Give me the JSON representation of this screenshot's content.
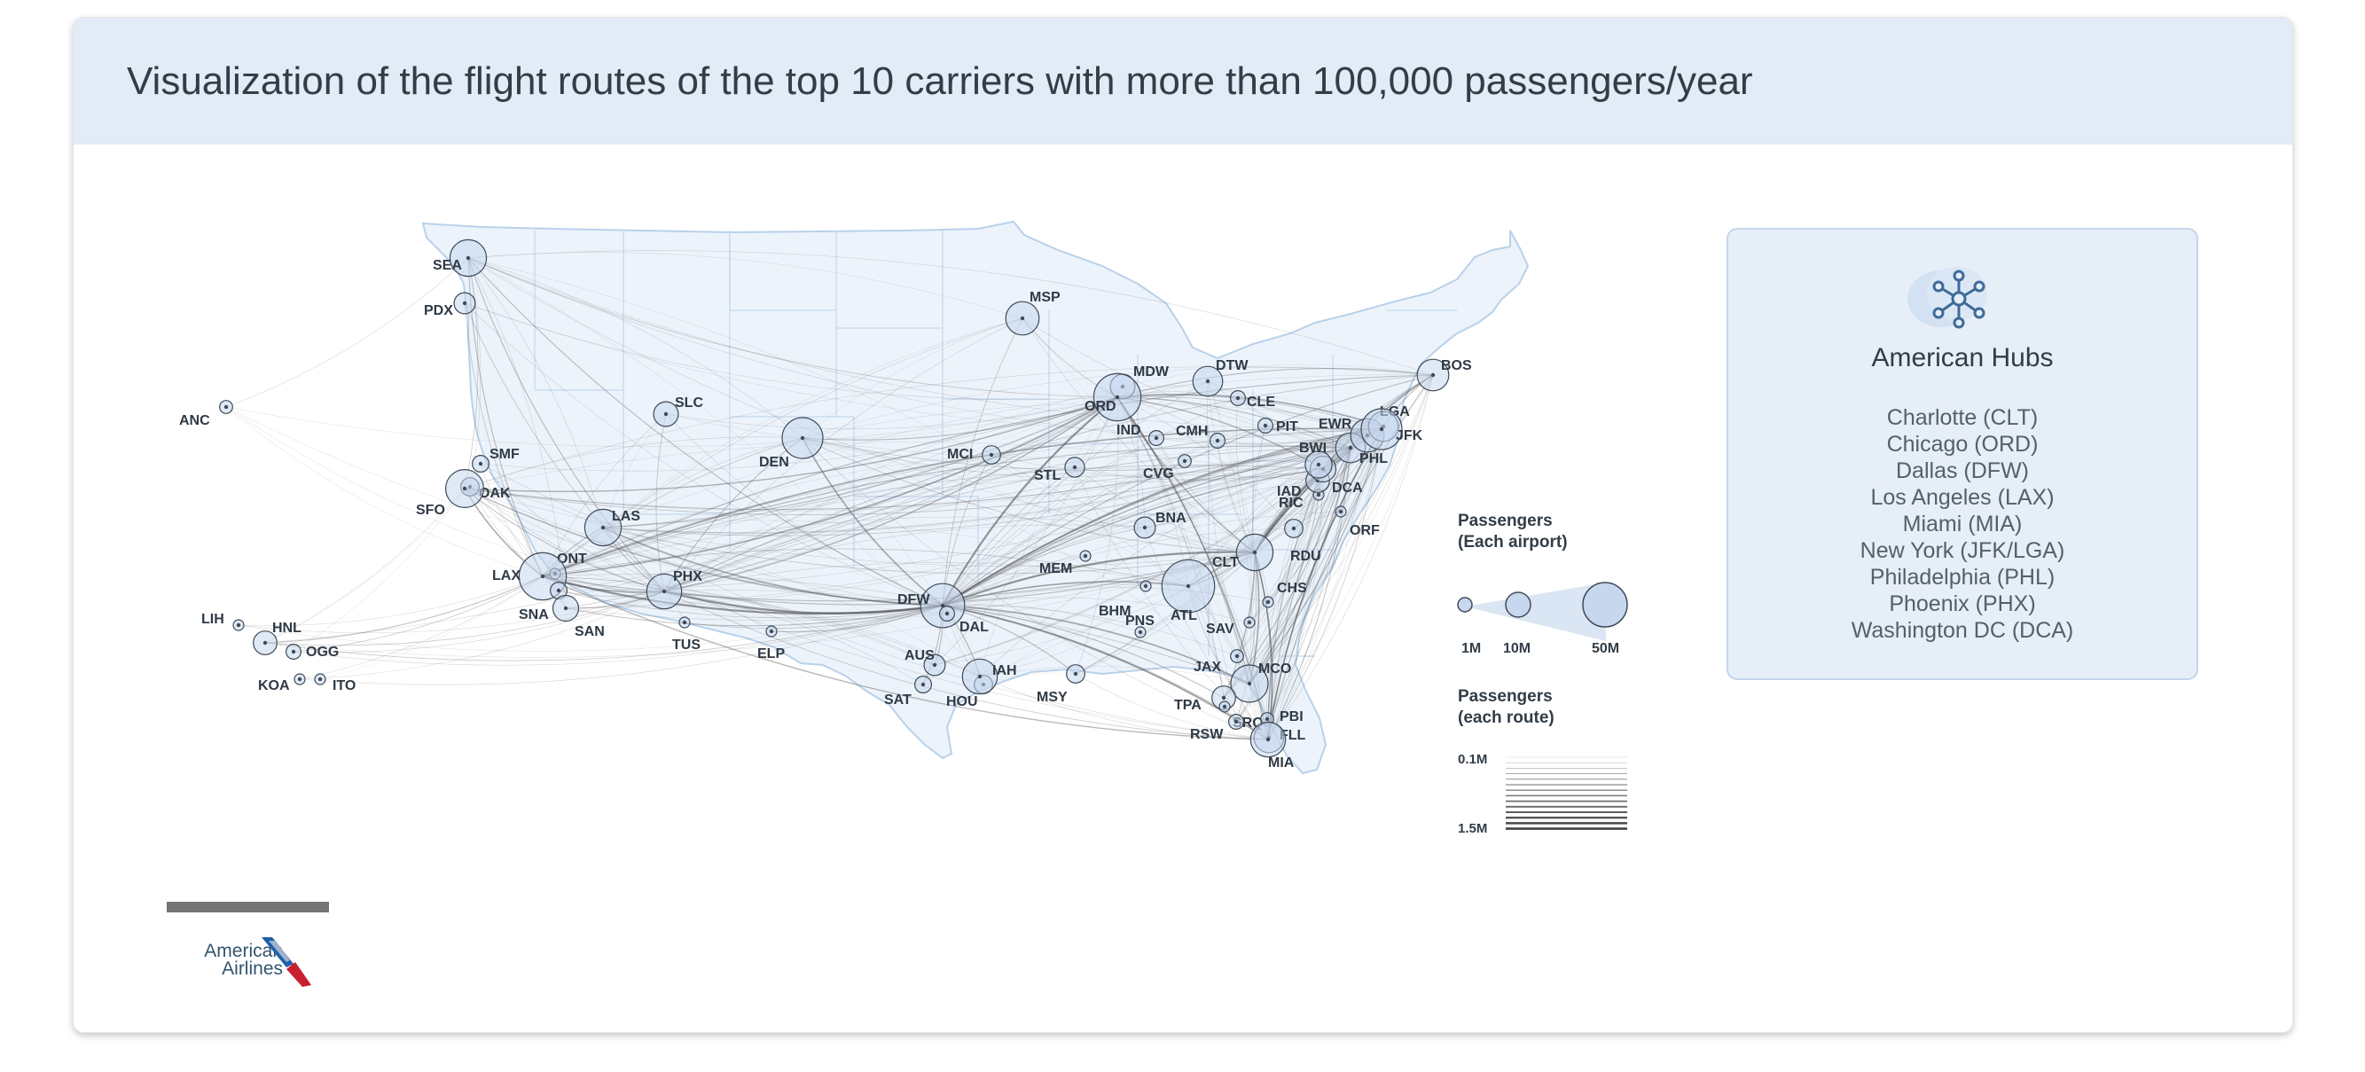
{
  "title": "Visualization of the flight routes of the top 10 carriers with more than 100,000 passengers/year",
  "hubs": {
    "title": "American Hubs",
    "list": [
      "Charlotte (CLT)",
      "Chicago (ORD)",
      "Dallas (DFW)",
      "Los Angeles (LAX)",
      "Miami (MIA)",
      "New York (JFK/LGA)",
      "Philadelphia (PHL)",
      "Phoenix (PHX)",
      "Washington DC (DCA)"
    ]
  },
  "legend": {
    "airport_title_1": "Passengers",
    "airport_title_2": "(Each airport)",
    "airport_sizes": [
      "1M",
      "10M",
      "50M"
    ],
    "route_title_1": "Passengers",
    "route_title_2": "(each route)",
    "route_min": "0.1M",
    "route_max": "1.5M"
  },
  "logo": {
    "line1": "American",
    "line2": "Airlines"
  },
  "colors": {
    "header_bg": "#e2ebf6",
    "land": "#ecf3fb",
    "borders": "#b9d1ea",
    "airport_fill": "#c6d7ee",
    "route_stroke": "#555555",
    "logo_blue": "#1f5fa8",
    "logo_red": "#c8202f"
  },
  "airports": [
    {
      "code": "SEA",
      "passengers_m": 24
    },
    {
      "code": "PDX",
      "passengers_m": 8
    },
    {
      "code": "ANC",
      "passengers_m": 3
    },
    {
      "code": "SLC",
      "passengers_m": 11
    },
    {
      "code": "SMF",
      "passengers_m": 5
    },
    {
      "code": "OAK",
      "passengers_m": 6
    },
    {
      "code": "SFO",
      "passengers_m": 26
    },
    {
      "code": "LAS",
      "passengers_m": 24
    },
    {
      "code": "ONT",
      "passengers_m": 2
    },
    {
      "code": "LAX",
      "passengers_m": 40
    },
    {
      "code": "SNA",
      "passengers_m": 5
    },
    {
      "code": "SAN",
      "passengers_m": 12
    },
    {
      "code": "PHX",
      "passengers_m": 22
    },
    {
      "code": "TUS",
      "passengers_m": 2
    },
    {
      "code": "ELP",
      "passengers_m": 2
    },
    {
      "code": "LIH",
      "passengers_m": 2
    },
    {
      "code": "HNL",
      "passengers_m": 10
    },
    {
      "code": "OGG",
      "passengers_m": 4
    },
    {
      "code": "KOA",
      "passengers_m": 2
    },
    {
      "code": "ITO",
      "passengers_m": 1
    },
    {
      "code": "DEN",
      "passengers_m": 30
    },
    {
      "code": "MSP",
      "passengers_m": 20
    },
    {
      "code": "MCI",
      "passengers_m": 6
    },
    {
      "code": "STL",
      "passengers_m": 7
    },
    {
      "code": "DFW",
      "passengers_m": 35
    },
    {
      "code": "DAL",
      "passengers_m": 4
    },
    {
      "code": "AUS",
      "passengers_m": 8
    },
    {
      "code": "SAT",
      "passengers_m": 5
    },
    {
      "code": "HOU",
      "passengers_m": 6
    },
    {
      "code": "IAH",
      "passengers_m": 22
    },
    {
      "code": "MSY",
      "passengers_m": 6
    },
    {
      "code": "MEM",
      "passengers_m": 2
    },
    {
      "code": "BNA",
      "passengers_m": 8
    },
    {
      "code": "BHM",
      "passengers_m": 1
    },
    {
      "code": "PNS",
      "passengers_m": 1
    },
    {
      "code": "ATL",
      "passengers_m": 50
    },
    {
      "code": "MDW",
      "passengers_m": 11
    },
    {
      "code": "ORD",
      "passengers_m": 40
    },
    {
      "code": "DTW",
      "passengers_m": 16
    },
    {
      "code": "CLE",
      "passengers_m": 4
    },
    {
      "code": "IND",
      "passengers_m": 4
    },
    {
      "code": "CMH",
      "passengers_m": 4
    },
    {
      "code": "PIT",
      "passengers_m": 4
    },
    {
      "code": "CVG",
      "passengers_m": 3
    },
    {
      "code": "CLT",
      "passengers_m": 24
    },
    {
      "code": "RDU",
      "passengers_m": 6
    },
    {
      "code": "ORF",
      "passengers_m": 2
    },
    {
      "code": "RIC",
      "passengers_m": 2
    },
    {
      "code": "IAD",
      "passengers_m": 10
    },
    {
      "code": "DCA",
      "passengers_m": 12
    },
    {
      "code": "BWI",
      "passengers_m": 13
    },
    {
      "code": "PHL",
      "passengers_m": 16
    },
    {
      "code": "EWR",
      "passengers_m": 20
    },
    {
      "code": "LGA",
      "passengers_m": 16
    },
    {
      "code": "JFK",
      "passengers_m": 30
    },
    {
      "code": "BOS",
      "passengers_m": 18
    },
    {
      "code": "CHS",
      "passengers_m": 2
    },
    {
      "code": "SAV",
      "passengers_m": 2
    },
    {
      "code": "JAX",
      "passengers_m": 3
    },
    {
      "code": "MCO",
      "passengers_m": 25
    },
    {
      "code": "TPA",
      "passengers_m": 10
    },
    {
      "code": "SRQ",
      "passengers_m": 1
    },
    {
      "code": "RSW",
      "passengers_m": 4
    },
    {
      "code": "PBI",
      "passengers_m": 3
    },
    {
      "code": "FLL",
      "passengers_m": 16
    },
    {
      "code": "MIA",
      "passengers_m": 22
    }
  ]
}
